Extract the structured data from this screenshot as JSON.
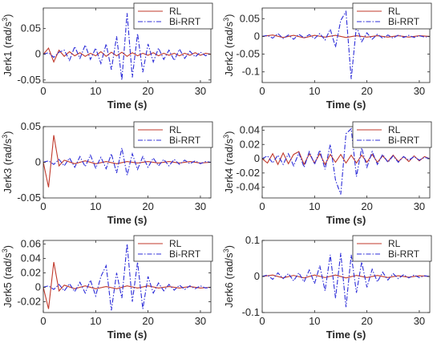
{
  "legend_labels": [
    "RL",
    "Bi-RRT"
  ],
  "colors": {
    "RL": "#c0392b",
    "Bi-RRT": "#2c2cd8"
  },
  "chart_data": [
    {
      "type": "line",
      "ylabel": "Jerk1 (rad/s^3)",
      "xlabel": "Time (s)",
      "xlim": [
        0,
        32
      ],
      "ylim": [
        -0.055,
        0.09
      ],
      "xticks": [
        0,
        10,
        20,
        30
      ],
      "yticks": [
        -0.05,
        0,
        0.05
      ],
      "ytick_labels": [
        "-0.05",
        "0",
        "0.05"
      ],
      "legend": "top-right",
      "grid": false,
      "series": [
        {
          "name": "RL",
          "x": [
            0,
            1,
            2,
            3,
            4,
            5,
            6,
            7,
            8,
            9,
            10,
            11,
            12,
            13,
            14,
            15,
            16,
            17,
            18,
            19,
            20,
            21,
            22,
            23,
            24,
            25,
            26,
            27,
            28,
            29,
            30,
            31,
            32
          ],
          "values": [
            0,
            0.012,
            -0.015,
            0.008,
            -0.004,
            0.005,
            -0.003,
            0.003,
            -0.004,
            0.002,
            -0.003,
            0.005,
            -0.004,
            0.004,
            -0.003,
            0.004,
            -0.004,
            0.003,
            -0.003,
            0.002,
            -0.002,
            0.003,
            -0.003,
            0.002,
            -0.002,
            0.002,
            -0.003,
            0.002,
            -0.002,
            0.003,
            -0.002,
            0.002,
            0
          ]
        },
        {
          "name": "Bi-RRT",
          "x": [
            0,
            1,
            2,
            3,
            4,
            5,
            6,
            7,
            8,
            9,
            10,
            11,
            12,
            13,
            14,
            15,
            16,
            17,
            18,
            19,
            20,
            21,
            22,
            23,
            24,
            25,
            26,
            27,
            28,
            29,
            30,
            31,
            32
          ],
          "values": [
            0,
            0.003,
            -0.006,
            0.004,
            0.008,
            -0.012,
            0.015,
            -0.008,
            0.018,
            -0.01,
            0.012,
            -0.018,
            0.02,
            -0.03,
            0.035,
            -0.05,
            0.08,
            -0.045,
            0.04,
            -0.035,
            0.02,
            -0.015,
            0.012,
            -0.01,
            0.008,
            -0.012,
            0.01,
            -0.008,
            0.006,
            -0.005,
            0.004,
            -0.003,
            0.002
          ]
        }
      ]
    },
    {
      "type": "line",
      "ylabel": "Jerk2 (rad/s^3)",
      "xlabel": "Time (s)",
      "xlim": [
        0,
        32
      ],
      "ylim": [
        -0.13,
        0.08
      ],
      "xticks": [
        0,
        10,
        20,
        30
      ],
      "yticks": [
        -0.1,
        -0.05,
        0,
        0.05
      ],
      "ytick_labels": [
        "-0.1",
        "-0.05",
        "0",
        "0.05"
      ],
      "legend": "top-right",
      "grid": false,
      "series": [
        {
          "name": "RL",
          "x": [
            0,
            2,
            4,
            6,
            8,
            10,
            12,
            14,
            16,
            18,
            20,
            22,
            24,
            26,
            28,
            30,
            32
          ],
          "values": [
            0,
            0.004,
            -0.003,
            0.003,
            -0.004,
            0.003,
            -0.002,
            0.003,
            -0.003,
            0.002,
            -0.002,
            0.002,
            -0.002,
            0.002,
            -0.002,
            0.002,
            0
          ]
        },
        {
          "name": "Bi-RRT",
          "x": [
            0,
            1,
            2,
            3,
            4,
            5,
            6,
            7,
            8,
            9,
            10,
            11,
            12,
            13,
            14,
            15,
            16,
            17,
            18,
            19,
            20,
            21,
            22,
            23,
            24,
            25,
            26,
            27,
            28,
            29,
            30,
            31,
            32
          ],
          "values": [
            0,
            0.003,
            -0.005,
            0.008,
            -0.006,
            0.004,
            -0.008,
            0.006,
            -0.004,
            0.005,
            -0.006,
            0.008,
            -0.01,
            0.02,
            -0.03,
            0.045,
            0.07,
            -0.12,
            0.03,
            -0.015,
            0.01,
            -0.008,
            0.006,
            -0.005,
            0.004,
            -0.005,
            0.004,
            -0.003,
            0.003,
            -0.003,
            0.002,
            -0.002,
            0
          ]
        }
      ]
    },
    {
      "type": "line",
      "ylabel": "Jerk3 (rad/s^3)",
      "xlabel": "Time (s)",
      "xlim": [
        0,
        32
      ],
      "ylim": [
        -0.05,
        0.05
      ],
      "xticks": [
        0,
        10,
        20,
        30
      ],
      "yticks": [
        -0.05,
        0,
        0.05
      ],
      "ytick_labels": [
        "-0.05",
        "0",
        "0.05"
      ],
      "legend": "top-right",
      "grid": false,
      "series": [
        {
          "name": "RL",
          "x": [
            0,
            1,
            2,
            3,
            4,
            6,
            8,
            10,
            12,
            14,
            16,
            18,
            20,
            22,
            24,
            26,
            28,
            30,
            32
          ],
          "values": [
            0,
            -0.035,
            0.038,
            -0.005,
            0.003,
            -0.002,
            0.002,
            -0.002,
            0.001,
            -0.002,
            0.001,
            -0.001,
            0.001,
            -0.001,
            0.001,
            -0.001,
            0.001,
            -0.001,
            0
          ]
        },
        {
          "name": "Bi-RRT",
          "x": [
            0,
            1,
            2,
            3,
            4,
            5,
            6,
            7,
            8,
            9,
            10,
            11,
            12,
            13,
            14,
            15,
            16,
            17,
            18,
            19,
            20,
            21,
            22,
            23,
            24,
            25,
            26,
            27,
            28,
            29,
            30,
            31,
            32
          ],
          "values": [
            0,
            0.002,
            -0.003,
            0.004,
            -0.005,
            0.006,
            -0.007,
            0.008,
            -0.006,
            0.01,
            -0.008,
            0.007,
            -0.009,
            0.012,
            -0.015,
            0.02,
            -0.018,
            0.012,
            -0.01,
            0.008,
            -0.007,
            0.006,
            -0.005,
            0.004,
            -0.005,
            0.004,
            -0.003,
            0.003,
            -0.002,
            0.002,
            -0.002,
            0.001,
            0
          ]
        }
      ]
    },
    {
      "type": "line",
      "ylabel": "Jerk4 (rad/s^3)",
      "xlabel": "Time (s)",
      "xlim": [
        0,
        32
      ],
      "ylim": [
        -0.055,
        0.045
      ],
      "xticks": [
        0,
        10,
        20,
        30
      ],
      "yticks": [
        -0.04,
        -0.02,
        0,
        0.02,
        0.04
      ],
      "ytick_labels": [
        "-0.04",
        "-0.02",
        "0",
        "0.02",
        "0.04"
      ],
      "legend": "top-right",
      "grid": false,
      "series": [
        {
          "name": "RL",
          "x": [
            0,
            1,
            2,
            3,
            4,
            5,
            6,
            7,
            8,
            9,
            10,
            11,
            12,
            13,
            14,
            15,
            16,
            17,
            18,
            19,
            20,
            21,
            22,
            23,
            24,
            25,
            26,
            27,
            28,
            29,
            30,
            31,
            32
          ],
          "values": [
            0,
            -0.006,
            0.007,
            -0.008,
            0.008,
            -0.007,
            0.006,
            0.01,
            -0.008,
            0.007,
            -0.006,
            0.007,
            -0.008,
            0.006,
            -0.005,
            0.006,
            -0.006,
            0.005,
            -0.006,
            0.005,
            -0.005,
            0.006,
            -0.005,
            0.004,
            -0.004,
            0.005,
            -0.004,
            0.003,
            -0.004,
            0.004,
            -0.003,
            0.003,
            0
          ]
        },
        {
          "name": "Bi-RRT",
          "x": [
            0,
            1,
            2,
            3,
            4,
            5,
            6,
            7,
            8,
            9,
            10,
            11,
            12,
            13,
            14,
            15,
            16,
            17,
            18,
            19,
            20,
            21,
            22,
            23,
            24,
            25,
            26,
            27,
            28,
            29,
            30,
            31,
            32
          ],
          "values": [
            0,
            0.004,
            -0.006,
            0.005,
            -0.008,
            0.007,
            -0.01,
            0.008,
            -0.012,
            0.01,
            -0.008,
            0.012,
            -0.015,
            0.02,
            -0.03,
            -0.05,
            0.035,
            0.042,
            -0.025,
            0.015,
            -0.012,
            0.01,
            -0.008,
            0.006,
            -0.005,
            0.004,
            -0.005,
            0.003,
            -0.002,
            0.003,
            -0.002,
            0.002,
            0
          ]
        }
      ]
    },
    {
      "type": "line",
      "ylabel": "Jerk5 (rad/s^3)",
      "xlabel": "Time (s)",
      "xlim": [
        0,
        32
      ],
      "ylim": [
        -0.035,
        0.065
      ],
      "xticks": [
        0,
        10,
        20,
        30
      ],
      "yticks": [
        -0.02,
        0,
        0.02,
        0.04,
        0.06
      ],
      "ytick_labels": [
        "-0.02",
        "0",
        "0.02",
        "0.04",
        "0.06"
      ],
      "legend": "top-right",
      "grid": false,
      "series": [
        {
          "name": "RL",
          "x": [
            0,
            1,
            2,
            3,
            4,
            6,
            8,
            10,
            12,
            14,
            16,
            18,
            20,
            22,
            24,
            26,
            28,
            30,
            32
          ],
          "values": [
            0,
            -0.03,
            0.035,
            -0.005,
            0.003,
            -0.002,
            0.002,
            -0.002,
            0.001,
            -0.002,
            0.002,
            -0.001,
            0.002,
            -0.001,
            0.001,
            -0.001,
            0.001,
            -0.001,
            0
          ]
        },
        {
          "name": "Bi-RRT",
          "x": [
            0,
            1,
            2,
            3,
            4,
            5,
            6,
            7,
            8,
            9,
            10,
            11,
            12,
            13,
            14,
            15,
            16,
            17,
            18,
            19,
            20,
            21,
            22,
            23,
            24,
            25,
            26,
            27,
            28,
            29,
            30,
            31,
            32
          ],
          "values": [
            0,
            0.002,
            -0.003,
            0.004,
            -0.005,
            0.005,
            -0.006,
            0.007,
            -0.008,
            0.01,
            -0.012,
            0.015,
            0.03,
            -0.032,
            0.02,
            -0.015,
            0.06,
            -0.02,
            0.035,
            -0.03,
            0.015,
            -0.008,
            0.006,
            -0.005,
            0.004,
            -0.004,
            0.003,
            -0.003,
            0.002,
            -0.002,
            0.002,
            -0.001,
            0
          ]
        }
      ]
    },
    {
      "type": "line",
      "ylabel": "Jerk6 (rad/s^3)",
      "xlabel": "Time (s)",
      "xlim": [
        0,
        32
      ],
      "ylim": [
        -0.1,
        0.1
      ],
      "xticks": [
        0,
        10,
        20,
        30
      ],
      "yticks": [
        -0.1,
        0,
        0.1
      ],
      "ytick_labels": [
        "-0.1",
        "0",
        "0.1"
      ],
      "legend": "top-right",
      "grid": false,
      "series": [
        {
          "name": "RL",
          "x": [
            0,
            2,
            4,
            6,
            8,
            10,
            12,
            14,
            16,
            18,
            20,
            22,
            24,
            26,
            28,
            30,
            32
          ],
          "values": [
            0,
            0.004,
            -0.004,
            0.003,
            -0.004,
            0.004,
            -0.003,
            0.004,
            -0.004,
            0.003,
            -0.003,
            0.003,
            -0.003,
            0.002,
            -0.002,
            0.002,
            0
          ]
        },
        {
          "name": "Bi-RRT",
          "x": [
            0,
            1,
            2,
            3,
            4,
            5,
            6,
            7,
            8,
            9,
            10,
            11,
            12,
            13,
            14,
            15,
            16,
            17,
            18,
            19,
            20,
            21,
            22,
            23,
            24,
            25,
            26,
            27,
            28,
            29,
            30,
            31,
            32
          ],
          "values": [
            0,
            0.004,
            -0.008,
            0.01,
            -0.006,
            0.008,
            -0.012,
            0.01,
            -0.015,
            0.018,
            -0.02,
            0.03,
            -0.04,
            0.06,
            -0.06,
            0.065,
            -0.085,
            0.06,
            -0.045,
            0.04,
            -0.03,
            0.02,
            -0.015,
            0.012,
            -0.01,
            0.008,
            -0.006,
            0.005,
            -0.004,
            0.004,
            -0.003,
            0.002,
            0
          ]
        }
      ]
    }
  ]
}
